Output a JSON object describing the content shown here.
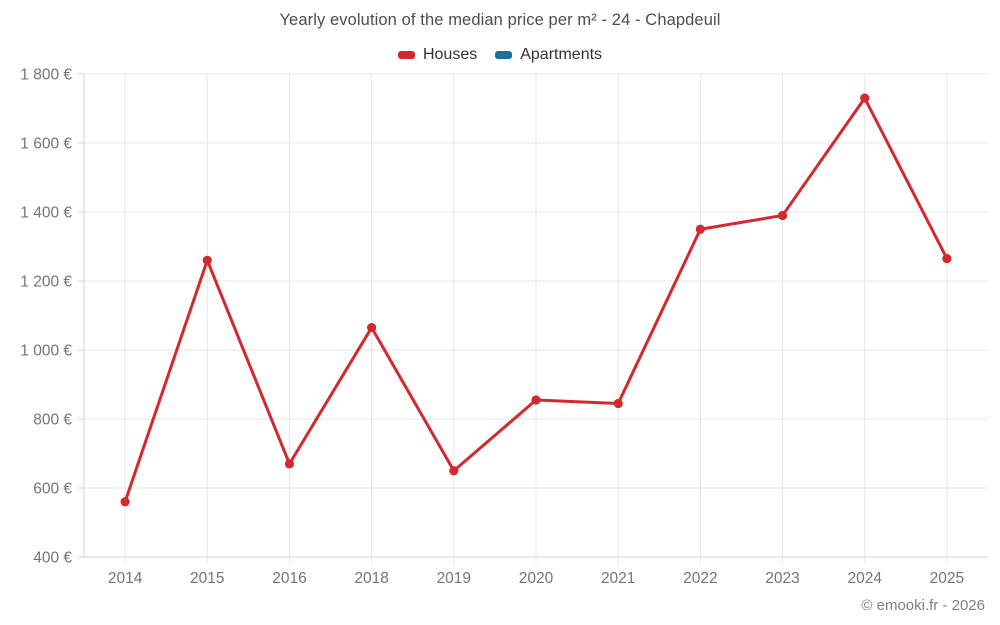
{
  "title": "Yearly evolution of the median price per m² - 24 - Chapdeuil",
  "legend": {
    "items": [
      {
        "label": "Houses",
        "color": "#d5282d"
      },
      {
        "label": "Apartments",
        "color": "#17719f"
      }
    ]
  },
  "footer": {
    "copyright": "© emooki.fr - 2026"
  },
  "colors": {
    "series_houses": "#d5282d",
    "series_apartments": "#17719f",
    "gridline": "#e7e7e7",
    "axis_line": "#d6d6d6",
    "tick_label": "#757575"
  },
  "chart_data": {
    "type": "line",
    "title": "Yearly evolution of the median price per m² - 24 - Chapdeuil",
    "categories": [
      "2014",
      "2015",
      "2016",
      "2018",
      "2019",
      "2020",
      "2021",
      "2022",
      "2023",
      "2024",
      "2025"
    ],
    "series": [
      {
        "name": "Houses",
        "color": "#d5282d",
        "values": [
          560,
          1260,
          670,
          1065,
          650,
          855,
          845,
          1350,
          1390,
          1730,
          1265
        ]
      },
      {
        "name": "Apartments",
        "color": "#17719f",
        "values": []
      }
    ],
    "xlabel": "",
    "ylabel": "",
    "ylim": [
      400,
      1800
    ],
    "ytick_step": 200,
    "ytick_labels": [
      "400 €",
      "600 €",
      "800 €",
      "1 000 €",
      "1 200 €",
      "1 400 €",
      "1 600 €",
      "1 800 €"
    ],
    "grid": true,
    "legend_position": "top",
    "marker": "circle",
    "currency": "€"
  }
}
